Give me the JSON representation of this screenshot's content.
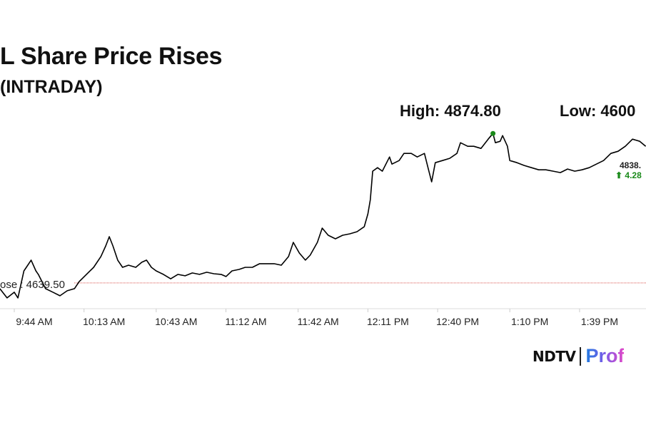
{
  "title": "L Share Price Rises",
  "subtitle": "(INTRADAY)",
  "high_label": "High: 4874.80",
  "low_label": "Low: 4600",
  "logo": {
    "left": "NDTV",
    "right": "Prof"
  },
  "chart_data": {
    "type": "line",
    "title": "L Share Price Rises (INTRADAY)",
    "xlabel": "",
    "ylabel": "",
    "x_unit": "minutes since midnight",
    "xlim": [
      578,
      847
    ],
    "ylim": [
      4599,
      4939
    ],
    "grid": false,
    "prev_close": {
      "label": "ose : 4639.50",
      "value": 4639.5,
      "color": "#d9534f"
    },
    "high": {
      "value": 4874.8,
      "time": 783,
      "color": "#1a8a1a"
    },
    "last": {
      "price_label": "4838.",
      "change_label": "⬆ 4.28",
      "change_color": "#1a8a1a"
    },
    "x_ticks": [
      {
        "label": "9:44 AM",
        "value": 584
      },
      {
        "label": "10:13 AM",
        "value": 613
      },
      {
        "label": "10:43 AM",
        "value": 643
      },
      {
        "label": "11:12 AM",
        "value": 672
      },
      {
        "label": "11:42 AM",
        "value": 702
      },
      {
        "label": "12:11 PM",
        "value": 731
      },
      {
        "label": "12:40 PM",
        "value": 760
      },
      {
        "label": "1:10 PM",
        "value": 790
      },
      {
        "label": "1:39 PM",
        "value": 819
      }
    ],
    "series": [
      {
        "name": "Price",
        "color": "#000000",
        "x": [
          578,
          581,
          584,
          585.5,
          588,
          589,
          591,
          593,
          594,
          597,
          600,
          603,
          606,
          609,
          611,
          614,
          617,
          620,
          622,
          623.5,
          625,
          627,
          629,
          631.5,
          634.5,
          637,
          639,
          641,
          643,
          646,
          649,
          652,
          655,
          658,
          661,
          664,
          667,
          670,
          672,
          674.5,
          677.5,
          680,
          683,
          686,
          689,
          692,
          695,
          698,
          700,
          702.5,
          705,
          707,
          710,
          712,
          714.5,
          717.5,
          720.5,
          723.5,
          726.5,
          729.5,
          731,
          732,
          733,
          735,
          737,
          740,
          741,
          744,
          746,
          749,
          751.5,
          754.5,
          756,
          757.5,
          759,
          762,
          765,
          768,
          769.5,
          772.5,
          775,
          778,
          781,
          783,
          784,
          786,
          787,
          789,
          790,
          793,
          796,
          799,
          802,
          805,
          808,
          811,
          814,
          817,
          820,
          823,
          826,
          829,
          832,
          835,
          838,
          841,
          844,
          846.5
        ],
        "y": [
          4630.5,
          4615.9,
          4624.9,
          4615.9,
          4658.5,
          4664.1,
          4675.4,
          4658.5,
          4653.0,
          4630.5,
          4625.0,
          4619.3,
          4627.2,
          4630.5,
          4641.7,
          4653.0,
          4664.1,
          4681.0,
          4697.8,
          4712.3,
          4697.8,
          4675.4,
          4664.1,
          4667.5,
          4664.1,
          4672.0,
          4675.4,
          4664.1,
          4658.5,
          4653.0,
          4646.0,
          4653.0,
          4650.7,
          4655.2,
          4653.0,
          4656.3,
          4654.0,
          4653.0,
          4649.6,
          4658.5,
          4660.8,
          4664.1,
          4664.1,
          4669.8,
          4669.8,
          4669.8,
          4667.5,
          4681.0,
          4703.4,
          4686.6,
          4675.4,
          4683.2,
          4703.4,
          4725.8,
          4714.6,
          4709.0,
          4714.6,
          4716.8,
          4720.2,
          4728.0,
          4748.2,
          4770.6,
          4815.4,
          4821.0,
          4815.4,
          4837.8,
          4826.6,
          4832.2,
          4843.4,
          4843.4,
          4837.8,
          4843.4,
          4821.0,
          4798.6,
          4828.8,
          4832.2,
          4835.6,
          4843.4,
          4860.2,
          4854.6,
          4854.6,
          4851.3,
          4865.8,
          4874.8,
          4860.2,
          4862.5,
          4871.4,
          4854.6,
          4832.2,
          4828.8,
          4824.4,
          4821.0,
          4817.6,
          4817.6,
          4815.4,
          4813.2,
          4818.8,
          4815.4,
          4817.6,
          4821.0,
          4826.6,
          4832.2,
          4843.4,
          4846.8,
          4854.6,
          4865.8,
          4862.5,
          4854.6
        ]
      }
    ]
  }
}
